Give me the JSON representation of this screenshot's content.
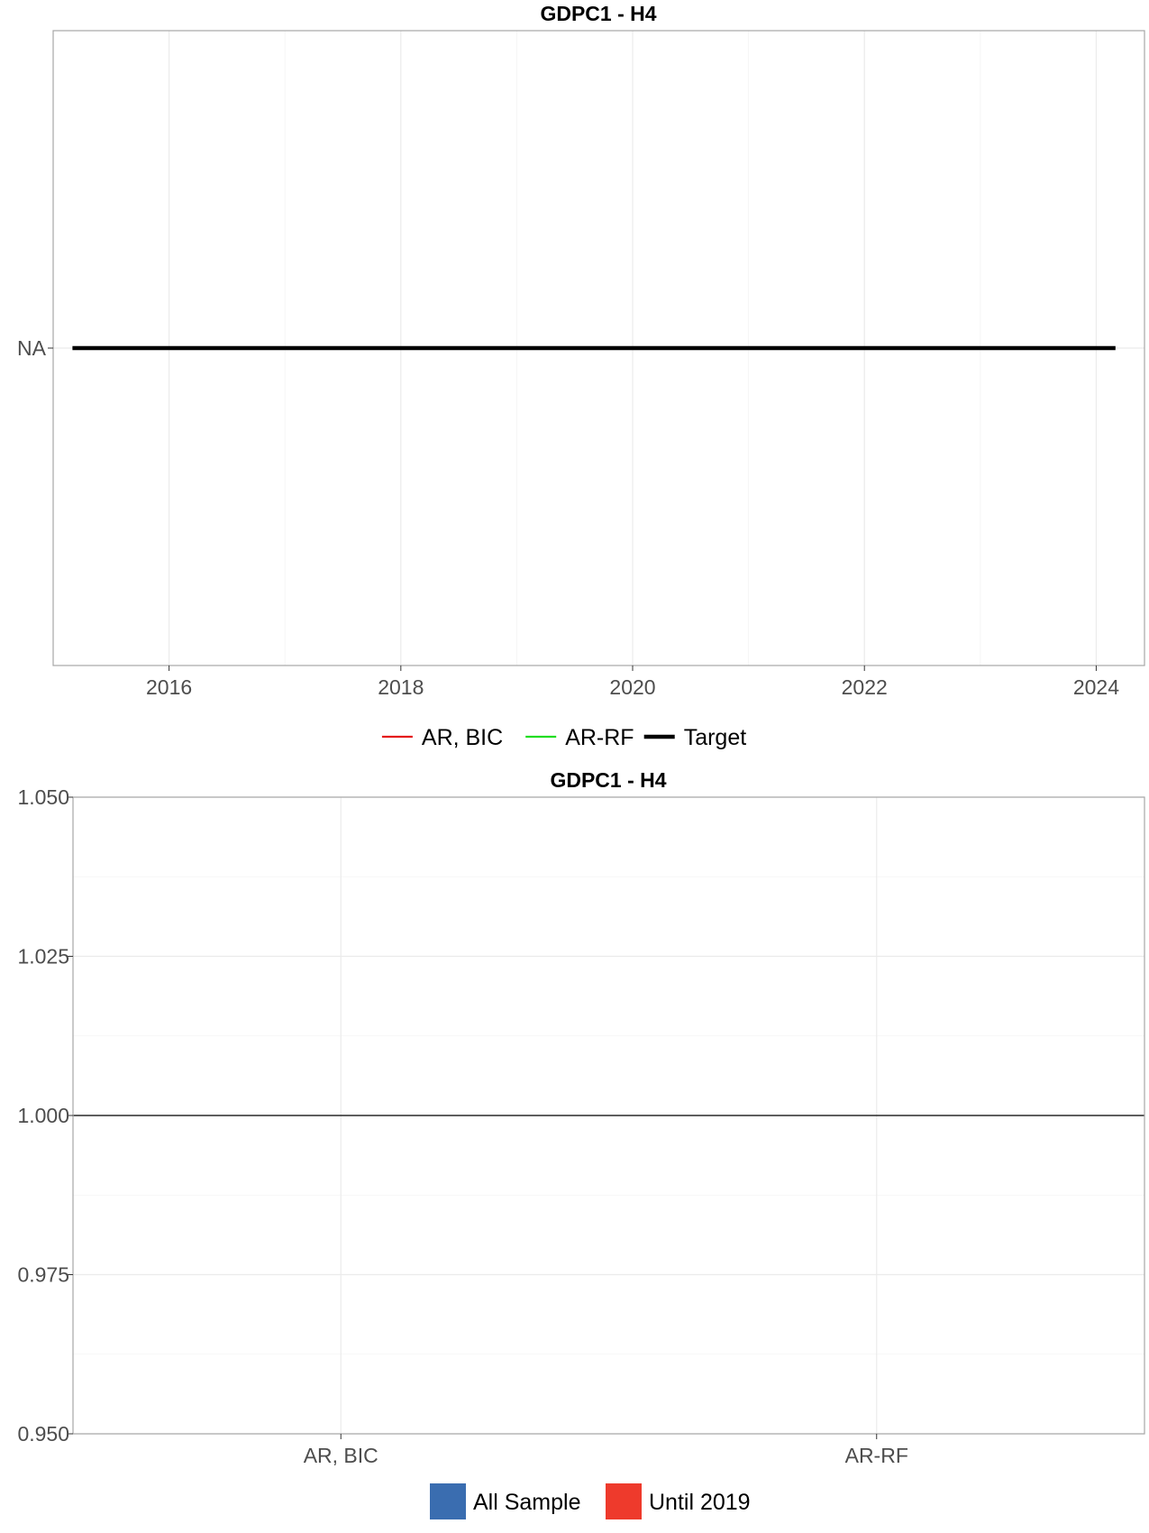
{
  "chart_data": [
    {
      "type": "line",
      "title": "GDPC1 - H4",
      "xlabel": "",
      "ylabel": "",
      "x_range": [
        "2015-01",
        "2024-06"
      ],
      "x_ticks": [
        "2016",
        "2018",
        "2020",
        "2022",
        "2024"
      ],
      "y_ticks": [
        "NA"
      ],
      "grid": true,
      "legend_position": "bottom",
      "series": [
        {
          "name": "AR, BIC",
          "color": "#e41a1c",
          "values": []
        },
        {
          "name": "AR-RF",
          "color": "#22dd22",
          "values": []
        },
        {
          "name": "Target",
          "color": "#000000",
          "x": [
            "2015-03",
            "2024-03"
          ],
          "values": [
            "NA",
            "NA"
          ]
        }
      ]
    },
    {
      "type": "bar",
      "title": "GDPC1 - H4",
      "xlabel": "",
      "ylabel": "",
      "categories": [
        "AR, BIC",
        "AR-RF"
      ],
      "ylim": [
        0.95,
        1.05
      ],
      "y_ticks": [
        "0.950",
        "0.975",
        "1.000",
        "1.025",
        "1.050"
      ],
      "reference_line": 1.0,
      "grid": true,
      "legend_position": "bottom",
      "series": [
        {
          "name": "All Sample",
          "color": "#3a6db0",
          "values": [
            null,
            null
          ]
        },
        {
          "name": "Until 2019",
          "color": "#ee3a2c",
          "values": [
            null,
            null
          ]
        }
      ]
    }
  ]
}
